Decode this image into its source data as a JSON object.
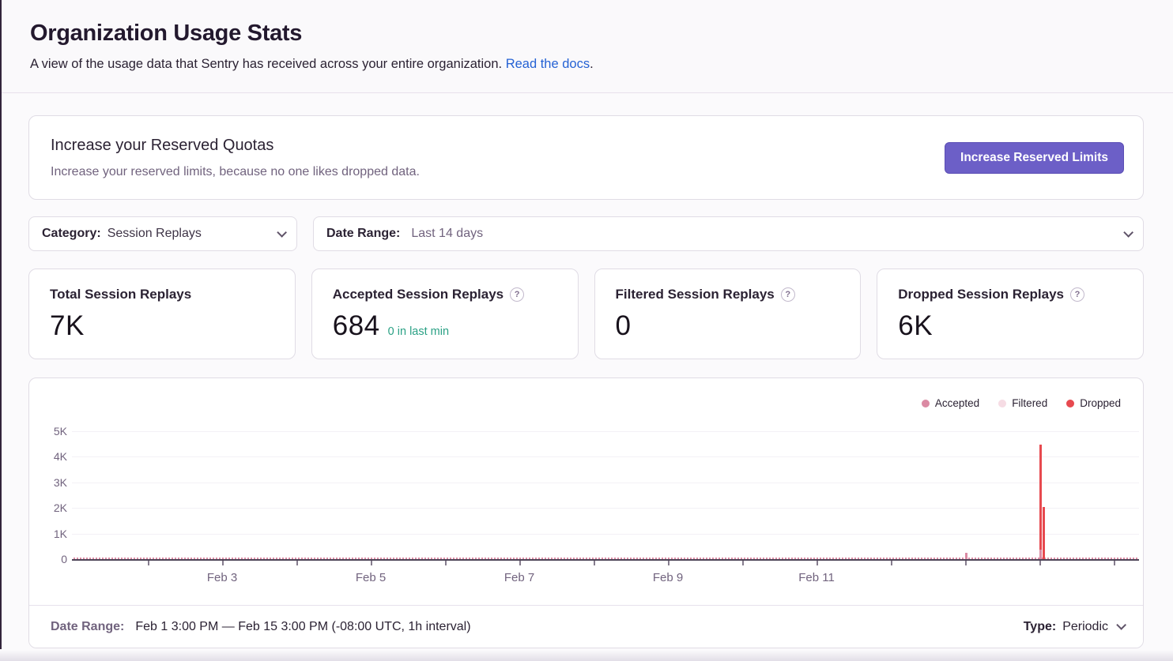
{
  "page": {
    "title": "Organization Usage Stats",
    "subtitle": "A view of the usage data that Sentry has received across your entire organization.",
    "subtitle_link": "Read the docs",
    "subtitle_suffix": "."
  },
  "quota_banner": {
    "title": "Increase your Reserved Quotas",
    "description": "Increase your reserved limits, because no one likes dropped data.",
    "button_label": "Increase Reserved Limits"
  },
  "filters": {
    "category_label": "Category:",
    "category_value": "Session Replays",
    "date_range_label": "Date Range:",
    "date_range_value": "Last 14 days"
  },
  "score_cards": [
    {
      "title": "Total Session Replays",
      "value": "7K"
    },
    {
      "title": "Accepted Session Replays",
      "value": "684",
      "trend": "0 in last min",
      "help_icon": "?"
    },
    {
      "title": "Filtered Session Replays",
      "value": "0",
      "help_icon": "?"
    },
    {
      "title": "Dropped Session Replays",
      "value": "6K",
      "help_icon": "?"
    }
  ],
  "chart_footer": {
    "date_range_label": "Date Range:",
    "date_range_value": "Feb 1 3:00 PM — Feb 15 3:00 PM (-08:00 UTC, 1h interval)",
    "type_label": "Type:",
    "type_value": "Periodic"
  },
  "chart_data": {
    "type": "bar",
    "stacked": true,
    "interval": "1h",
    "x_start": "Feb 1 3:00 PM",
    "x_end": "Feb 15 3:00 PM",
    "ylim": [
      0,
      5000
    ],
    "y_tick_labels": [
      "0",
      "1K",
      "2K",
      "3K",
      "4K",
      "5K"
    ],
    "x_tick_labels": [
      "Feb 3",
      "Feb 5",
      "Feb 7",
      "Feb 9",
      "Feb 11"
    ],
    "grid": true,
    "legend_position": "top-right",
    "legend": [
      {
        "name": "Accepted",
        "color": "#DB8AA3"
      },
      {
        "name": "Filtered",
        "color": "#F6DCE4"
      },
      {
        "name": "Dropped",
        "color": "#E7494F"
      }
    ],
    "series_totals": {
      "accepted": 684,
      "filtered": 0,
      "dropped": 6000,
      "total": 7000
    },
    "baseline_accepted_per_hour": 2,
    "notable_bars": [
      {
        "time": "Feb 13 12:00 AM",
        "hours_from_start": 273,
        "accepted": 250,
        "dropped": 0
      },
      {
        "time": "Feb 14 12:00 AM",
        "hours_from_start": 297,
        "accepted": 375,
        "dropped": 4100
      },
      {
        "time": "Feb 14 1:00 AM",
        "hours_from_start": 298,
        "accepted": 0,
        "dropped": 2050
      }
    ]
  }
}
